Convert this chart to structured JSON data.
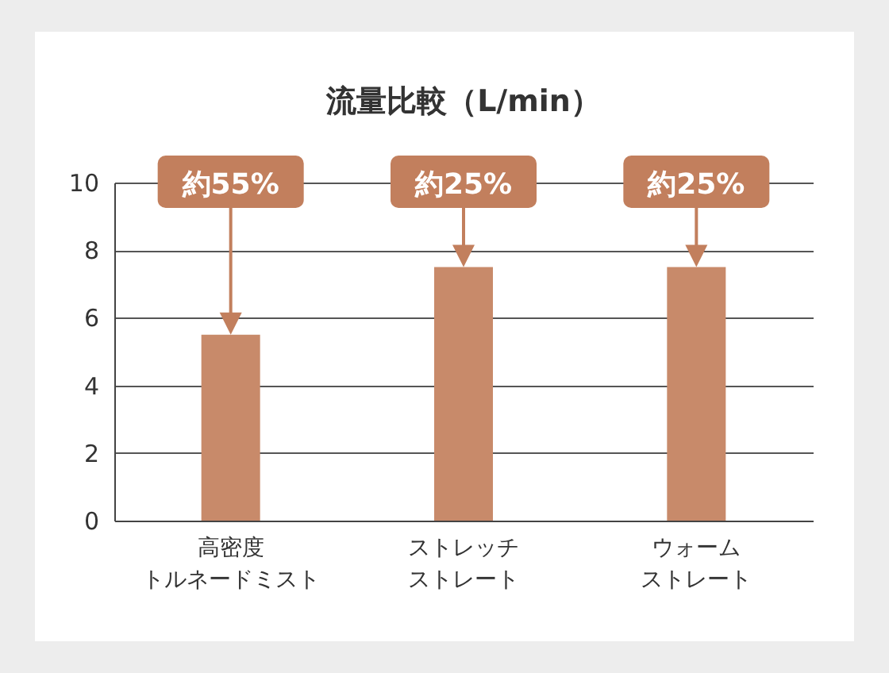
{
  "chart_data": {
    "type": "bar",
    "title": "流量比較（L/min）",
    "categories": [
      "高密度トルネードミスト",
      "ストレッチストレート",
      "ウォームストレート"
    ],
    "values": [
      5.5,
      7.5,
      7.5
    ],
    "color": "#c88a6a",
    "ylim": [
      0,
      10
    ],
    "yticks": [
      0,
      2,
      4,
      6,
      8,
      10
    ],
    "grid": "y",
    "annotations": [
      "約55%",
      "約25%",
      "約25%"
    ]
  }
}
